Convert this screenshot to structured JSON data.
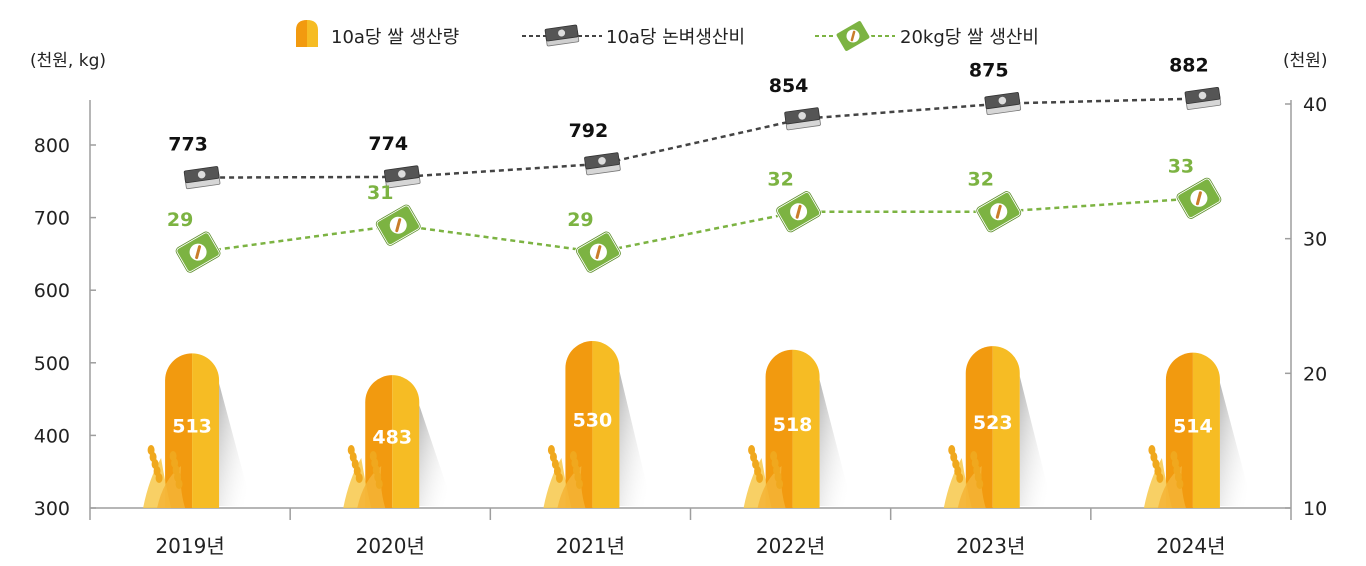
{
  "chart_data": {
    "type": "bar",
    "left_unit": "(천원, kg)",
    "right_unit": "(천원)",
    "categories": [
      "2019년",
      "2020년",
      "2021년",
      "2022년",
      "2023년",
      "2024년"
    ],
    "left_axis": {
      "ylim": [
        300,
        850
      ],
      "ticks": [
        "300",
        "400",
        "500",
        "600",
        "700",
        "800"
      ]
    },
    "right_axis": {
      "ylim": [
        10,
        40
      ],
      "ticks": [
        "10",
        "20",
        "30",
        "40"
      ]
    },
    "series": [
      {
        "name": "10a당 쌀 생산량",
        "type": "bar",
        "axis": "left",
        "color": "#f29a0f",
        "values": [
          513,
          483,
          530,
          518,
          523,
          514
        ],
        "labels": [
          "513",
          "483",
          "530",
          "518",
          "523",
          "514"
        ]
      },
      {
        "name": "10a당 논벼생산비",
        "type": "line",
        "axis": "left",
        "color": "#444444",
        "values": [
          773,
          774,
          792,
          854,
          875,
          882
        ],
        "labels": [
          "773",
          "774",
          "792",
          "854",
          "875",
          "882"
        ]
      },
      {
        "name": "20kg당 쌀 생산비",
        "type": "line",
        "axis": "right",
        "color": "#7cb342",
        "values": [
          29,
          31,
          29,
          32,
          32,
          33
        ],
        "labels": [
          "29",
          "31",
          "29",
          "32",
          "32",
          "33"
        ]
      }
    ],
    "icons": {
      "bar": "wheat-icon",
      "cost": "money-bundle-icon",
      "bag": "rice-bag-icon"
    },
    "legend_position": "top-center",
    "grid": false
  }
}
